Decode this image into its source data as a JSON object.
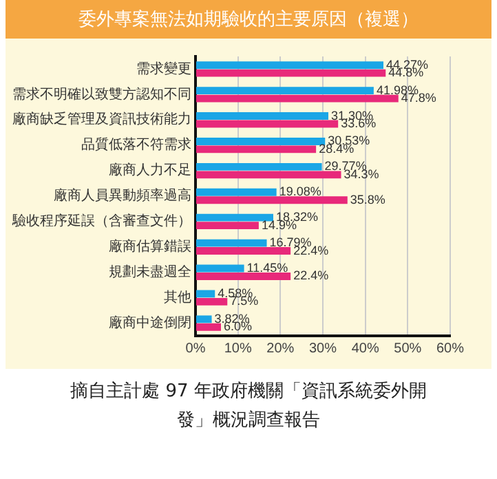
{
  "chart_data": {
    "type": "bar",
    "orientation": "horizontal",
    "title": "委外專案無法如期驗收的主要原因（複選）",
    "categories": [
      "需求變更",
      "需求不明確以致雙方認知不同",
      "廠商缺乏管理及資訊技術能力",
      "品質低落不符需求",
      "廠商人力不足",
      "廠商人員異動頻率過高",
      "驗收程序延誤（含審查文件）",
      "廠商估算錯誤",
      "規劃未盡週全",
      "其他",
      "廠商中途倒閉"
    ],
    "series": [
      {
        "color": "#1aa6e6",
        "values": [
          44.27,
          41.98,
          31.3,
          30.53,
          29.77,
          19.08,
          18.32,
          16.79,
          11.45,
          4.58,
          3.82
        ],
        "value_labels": [
          "44.27%",
          "41.98%",
          "31.30%",
          "30.53%",
          "29.77%",
          "19.08%",
          "18.32%",
          "16.79%",
          "11.45%",
          "4.58%",
          "3.82%"
        ]
      },
      {
        "color": "#e8297a",
        "values": [
          44.8,
          47.8,
          33.6,
          28.4,
          34.3,
          35.8,
          14.9,
          22.4,
          22.4,
          7.5,
          6.0
        ],
        "value_labels": [
          "44.8%",
          "47.8%",
          "33.6%",
          "28.4%",
          "34.3%",
          "35.8%",
          "14.9%",
          "22.4%",
          "22.4%",
          "7.5%",
          "6.0%"
        ]
      }
    ],
    "xlim": [
      0,
      60
    ],
    "xticks": [
      {
        "value": 0,
        "label": "0%"
      },
      {
        "value": 10,
        "label": "10%"
      },
      {
        "value": 20,
        "label": "20%"
      },
      {
        "value": 30,
        "label": "30%"
      },
      {
        "value": 40,
        "label": "40%"
      },
      {
        "value": 50,
        "label": "50%"
      },
      {
        "value": 60,
        "label": "60%"
      }
    ],
    "grid": "x",
    "legend": false,
    "annotations": [
      "摘自主計處 97 年政府機關「資訊系統委外開發」概況調查報告"
    ]
  }
}
